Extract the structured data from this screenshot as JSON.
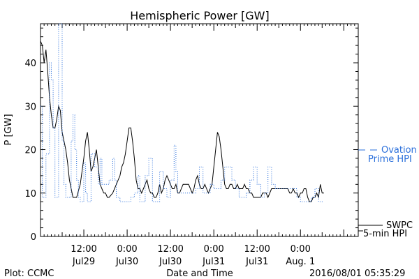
{
  "chart_data": {
    "type": "line",
    "title": "Hemispheric Power [GW]",
    "ylabel": "P [GW]",
    "xlabel": "Date and Time",
    "ylim": [
      0,
      49
    ],
    "xlim": [
      0,
      88
    ],
    "y_ticks": [
      0,
      10,
      20,
      30,
      40
    ],
    "x_ticks": [
      {
        "x": 12,
        "line1": "12:00",
        "line2": "Jul29"
      },
      {
        "x": 24,
        "line1": "0:00",
        "line2": "Jul30"
      },
      {
        "x": 36,
        "line1": "12:00",
        "line2": "Jul30"
      },
      {
        "x": 48,
        "line1": "0:00",
        "line2": "Jul31"
      },
      {
        "x": 60,
        "line1": "12:00",
        "line2": "Jul31"
      },
      {
        "x": 72,
        "line1": "0:00",
        "line2": "Aug. 1"
      }
    ],
    "series": [
      {
        "name": "SWPC 5-min HPI",
        "legend_line1": "SWPC",
        "legend_line2": "5-min HPI",
        "color": "#000000",
        "style": "solid",
        "points": [
          [
            0,
            45
          ],
          [
            0.5,
            44
          ],
          [
            1,
            40
          ],
          [
            1.5,
            43
          ],
          [
            2,
            38
          ],
          [
            2.5,
            32
          ],
          [
            3,
            28
          ],
          [
            3.5,
            25
          ],
          [
            4,
            25
          ],
          [
            4.5,
            27
          ],
          [
            5,
            30
          ],
          [
            5.5,
            29
          ],
          [
            6,
            24
          ],
          [
            7,
            20
          ],
          [
            7.5,
            17
          ],
          [
            8,
            13
          ],
          [
            8.5,
            11
          ],
          [
            9,
            9
          ],
          [
            10,
            9
          ],
          [
            11,
            12
          ],
          [
            11.5,
            15
          ],
          [
            12,
            18
          ],
          [
            12.5,
            22
          ],
          [
            13,
            24
          ],
          [
            13.5,
            20
          ],
          [
            14,
            15
          ],
          [
            14.5,
            16
          ],
          [
            15,
            18
          ],
          [
            15.5,
            20
          ],
          [
            16,
            16
          ],
          [
            16.5,
            12
          ],
          [
            17,
            11
          ],
          [
            17.5,
            10
          ],
          [
            18,
            10
          ],
          [
            18.5,
            9
          ],
          [
            19,
            9
          ],
          [
            20,
            10
          ],
          [
            20.5,
            11
          ],
          [
            21,
            12
          ],
          [
            22,
            14
          ],
          [
            22.5,
            16
          ],
          [
            23,
            17
          ],
          [
            23.5,
            19
          ],
          [
            24,
            22
          ],
          [
            24.5,
            25
          ],
          [
            25,
            25
          ],
          [
            25.5,
            22
          ],
          [
            26,
            18
          ],
          [
            26.5,
            13
          ],
          [
            27,
            11
          ],
          [
            27.5,
            11
          ],
          [
            28,
            10
          ],
          [
            28.5,
            11
          ],
          [
            29,
            12
          ],
          [
            29.5,
            13
          ],
          [
            30,
            11
          ],
          [
            30.5,
            10
          ],
          [
            31,
            10
          ],
          [
            31.5,
            9
          ],
          [
            32,
            9
          ],
          [
            32.5,
            10
          ],
          [
            33,
            12
          ],
          [
            33.5,
            10
          ],
          [
            34,
            11
          ],
          [
            34.5,
            13
          ],
          [
            35,
            14
          ],
          [
            35.5,
            13
          ],
          [
            36,
            12
          ],
          [
            36.5,
            11
          ],
          [
            37,
            11
          ],
          [
            37.5,
            12
          ],
          [
            38,
            10
          ],
          [
            38.5,
            10
          ],
          [
            39,
            11
          ],
          [
            39.5,
            12
          ],
          [
            40,
            12
          ],
          [
            41,
            12
          ],
          [
            41.5,
            11
          ],
          [
            42,
            10
          ],
          [
            42.5,
            11
          ],
          [
            43,
            13
          ],
          [
            43.5,
            14
          ],
          [
            44,
            12
          ],
          [
            44.5,
            11
          ],
          [
            45,
            11
          ],
          [
            45.5,
            12
          ],
          [
            46,
            11
          ],
          [
            46.5,
            10
          ],
          [
            47,
            11
          ],
          [
            47.5,
            12
          ],
          [
            48,
            16
          ],
          [
            48.5,
            20
          ],
          [
            49,
            24
          ],
          [
            49.5,
            23
          ],
          [
            50,
            20
          ],
          [
            50.5,
            16
          ],
          [
            51,
            12
          ],
          [
            51.5,
            11
          ],
          [
            52,
            11
          ],
          [
            52.5,
            12
          ],
          [
            53,
            12
          ],
          [
            53.5,
            11
          ],
          [
            54,
            11
          ],
          [
            54.5,
            12
          ],
          [
            55,
            11
          ],
          [
            55.5,
            11
          ],
          [
            56,
            11
          ],
          [
            56.5,
            12
          ],
          [
            57,
            11
          ],
          [
            57.5,
            11
          ],
          [
            58,
            10
          ],
          [
            58.5,
            10
          ],
          [
            59,
            9
          ],
          [
            60,
            9
          ],
          [
            60.5,
            9
          ],
          [
            61,
            9
          ],
          [
            61.5,
            10
          ],
          [
            62,
            10
          ],
          [
            62.5,
            10
          ],
          [
            63,
            9
          ],
          [
            63.5,
            10
          ],
          [
            64,
            11
          ],
          [
            64.5,
            11
          ],
          [
            65,
            11
          ],
          [
            66,
            11
          ],
          [
            67,
            11
          ],
          [
            68,
            11
          ],
          [
            68.5,
            11
          ],
          [
            69,
            10
          ],
          [
            69.5,
            10
          ],
          [
            70,
            11
          ],
          [
            70.5,
            10
          ],
          [
            71,
            10
          ],
          [
            71.5,
            9
          ],
          [
            72,
            10
          ],
          [
            72.5,
            10
          ],
          [
            73,
            11
          ],
          [
            73.5,
            11
          ],
          [
            74,
            9
          ],
          [
            74.5,
            8
          ],
          [
            75,
            8
          ],
          [
            75.5,
            9
          ],
          [
            76,
            9
          ],
          [
            76.5,
            10
          ],
          [
            77,
            9
          ],
          [
            77.5,
            12
          ],
          [
            78,
            10
          ],
          [
            78.5,
            10
          ]
        ]
      },
      {
        "name": "Ovation Prime HPI",
        "legend_line1": "Ovation",
        "legend_line2": "Prime HPI",
        "color": "#2a6fdb",
        "style": "dotted",
        "points": [
          [
            0,
            30
          ],
          [
            0.5,
            30
          ],
          [
            0.5,
            9
          ],
          [
            1.5,
            9
          ],
          [
            1.5,
            19
          ],
          [
            2.5,
            19
          ],
          [
            2.5,
            40
          ],
          [
            3,
            40
          ],
          [
            3,
            36
          ],
          [
            3.5,
            36
          ],
          [
            3.5,
            25
          ],
          [
            4,
            25
          ],
          [
            4,
            9
          ],
          [
            5,
            9
          ],
          [
            5,
            49
          ],
          [
            6,
            49
          ],
          [
            6,
            22
          ],
          [
            6.5,
            22
          ],
          [
            6.5,
            12
          ],
          [
            7,
            12
          ],
          [
            7,
            9
          ],
          [
            8.5,
            9
          ],
          [
            8.5,
            22
          ],
          [
            9,
            22
          ],
          [
            9,
            28
          ],
          [
            9.5,
            28
          ],
          [
            9.5,
            20
          ],
          [
            10,
            20
          ],
          [
            10,
            13
          ],
          [
            10.5,
            13
          ],
          [
            10.5,
            9
          ],
          [
            11,
            9
          ],
          [
            11,
            8
          ],
          [
            12,
            8
          ],
          [
            12,
            17
          ],
          [
            12.5,
            17
          ],
          [
            12.5,
            10
          ],
          [
            13,
            10
          ],
          [
            13,
            8
          ],
          [
            14,
            8
          ],
          [
            14,
            19
          ],
          [
            15,
            19
          ],
          [
            15,
            16
          ],
          [
            16,
            16
          ],
          [
            16,
            12
          ],
          [
            16.5,
            12
          ],
          [
            16.5,
            18
          ],
          [
            17,
            18
          ],
          [
            17,
            12
          ],
          [
            19,
            12
          ],
          [
            19,
            13
          ],
          [
            20,
            13
          ],
          [
            20,
            18
          ],
          [
            20.5,
            18
          ],
          [
            20.5,
            13
          ],
          [
            21,
            13
          ],
          [
            21,
            9
          ],
          [
            22,
            9
          ],
          [
            22,
            8
          ],
          [
            25,
            8
          ],
          [
            25,
            9
          ],
          [
            26,
            9
          ],
          [
            26,
            10
          ],
          [
            27,
            10
          ],
          [
            27,
            14
          ],
          [
            27.5,
            14
          ],
          [
            27.5,
            8
          ],
          [
            29,
            8
          ],
          [
            29,
            14
          ],
          [
            30,
            14
          ],
          [
            30,
            18
          ],
          [
            31,
            18
          ],
          [
            31,
            8
          ],
          [
            33,
            8
          ],
          [
            33,
            15
          ],
          [
            34,
            15
          ],
          [
            34,
            11
          ],
          [
            35,
            11
          ],
          [
            35,
            9
          ],
          [
            36,
            9
          ],
          [
            36,
            13
          ],
          [
            37,
            13
          ],
          [
            37,
            21
          ],
          [
            37.5,
            21
          ],
          [
            37.5,
            15
          ],
          [
            38,
            15
          ],
          [
            38,
            10
          ],
          [
            43,
            10
          ],
          [
            43,
            11
          ],
          [
            44,
            11
          ],
          [
            44,
            16
          ],
          [
            45,
            16
          ],
          [
            45,
            10
          ],
          [
            47,
            10
          ],
          [
            47,
            12
          ],
          [
            48,
            12
          ],
          [
            48,
            11
          ],
          [
            50,
            11
          ],
          [
            50,
            13
          ],
          [
            51,
            13
          ],
          [
            51,
            16
          ],
          [
            53,
            16
          ],
          [
            53,
            13
          ],
          [
            54,
            13
          ],
          [
            54,
            11
          ],
          [
            55,
            11
          ],
          [
            55,
            9
          ],
          [
            57,
            9
          ],
          [
            57,
            10
          ],
          [
            58,
            10
          ],
          [
            58,
            13
          ],
          [
            59,
            13
          ],
          [
            59,
            16
          ],
          [
            60,
            16
          ],
          [
            60,
            12
          ],
          [
            61,
            12
          ],
          [
            61,
            9
          ],
          [
            62,
            9
          ],
          [
            62,
            10
          ],
          [
            63,
            10
          ],
          [
            63,
            16
          ],
          [
            64,
            16
          ],
          [
            64,
            12
          ],
          [
            65,
            12
          ],
          [
            65,
            11
          ],
          [
            71,
            11
          ],
          [
            71,
            9
          ],
          [
            72,
            9
          ],
          [
            72,
            8
          ],
          [
            75,
            8
          ],
          [
            75,
            9
          ],
          [
            76,
            9
          ],
          [
            76,
            11
          ],
          [
            77,
            11
          ],
          [
            77,
            8
          ],
          [
            78.5,
            8
          ]
        ]
      }
    ],
    "footer_left": "Plot: CCMC",
    "footer_right": "2016/08/01 05:35:29"
  }
}
